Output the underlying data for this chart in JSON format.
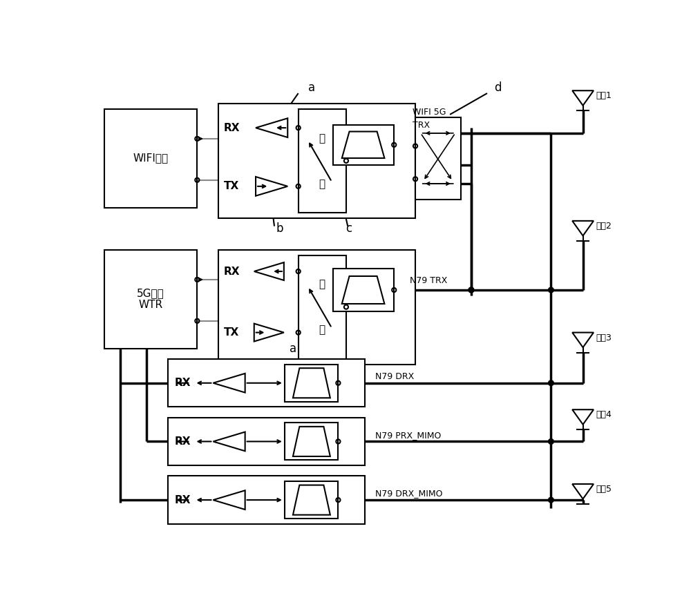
{
  "bg_color": "#ffffff",
  "wifi_chip_label": "WIFI芯片",
  "5g_chip_label": "5G芯片\nWTR",
  "antenna_labels": [
    "天线1",
    "天线2",
    "天线3",
    "天线4",
    "天线5"
  ]
}
